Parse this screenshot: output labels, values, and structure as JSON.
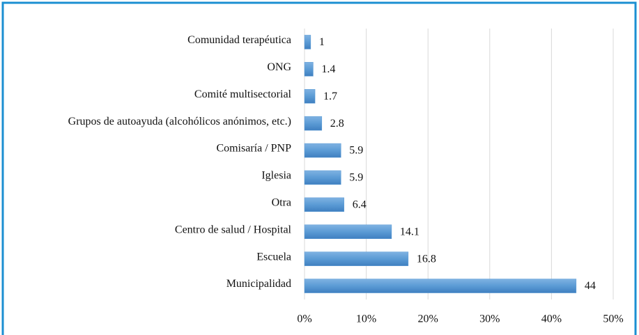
{
  "chart_data": {
    "type": "barh",
    "categories": [
      "Comunidad terapéutica",
      "ONG",
      "Comité multisectorial",
      "Grupos de autoayuda (alcohólicos anónimos, etc.)",
      "Comisaría / PNP",
      "Iglesia",
      "Otra",
      "Centro de salud / Hospital",
      "Escuela",
      "Municipalidad"
    ],
    "values": [
      1,
      1.4,
      1.7,
      2.8,
      5.9,
      5.9,
      6.4,
      14.1,
      16.8,
      44
    ],
    "color": "#5b9bd5",
    "xlim": [
      0,
      50
    ],
    "xticks": [
      {
        "value": 0,
        "label": "0%"
      },
      {
        "value": 10,
        "label": "10%"
      },
      {
        "value": 20,
        "label": "20%"
      },
      {
        "value": 30,
        "label": "30%"
      },
      {
        "value": 40,
        "label": "40%"
      },
      {
        "value": 50,
        "label": "50%"
      }
    ],
    "grid": true
  }
}
